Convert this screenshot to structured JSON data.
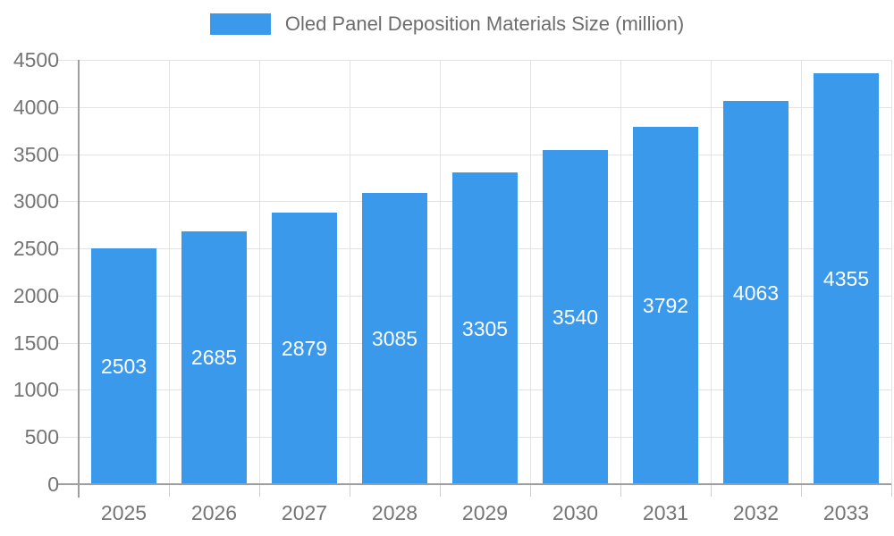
{
  "chart_data": {
    "type": "bar",
    "title": "Oled Panel Deposition Materials Size (million)",
    "categories": [
      "2025",
      "2026",
      "2027",
      "2028",
      "2029",
      "2030",
      "2031",
      "2032",
      "2033"
    ],
    "values": [
      2503,
      2685,
      2879,
      3085,
      3305,
      3540,
      3792,
      4063,
      4355
    ],
    "xlabel": "",
    "ylabel": "",
    "ylim": [
      0,
      4500
    ],
    "ytick_step": 500,
    "yticks": [
      0,
      500,
      1000,
      1500,
      2000,
      2500,
      3000,
      3500,
      4000,
      4500
    ],
    "grid": true,
    "legend_position": "top",
    "data_labels": "inside-center",
    "colors": {
      "bar": "#3B99EC",
      "bar_label_text": "#ffffff",
      "axis_text": "#757575",
      "legend_text": "#6d6d6d",
      "axis_line": "#9e9e9e",
      "gridline": "#e3e3e3",
      "tick": "#cfcfcf",
      "background": "#ffffff"
    }
  }
}
